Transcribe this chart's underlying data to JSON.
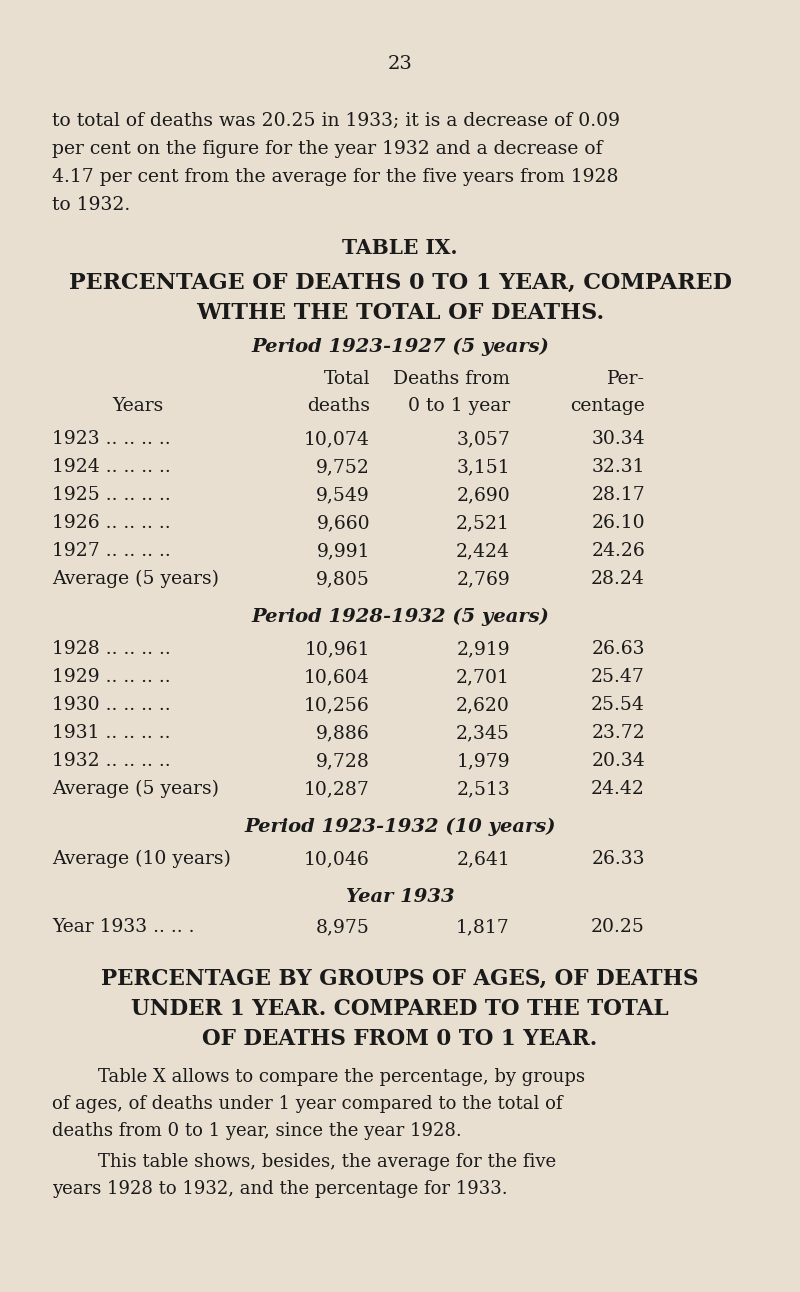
{
  "page_number": "23",
  "bg_color": "#e8dfd0",
  "text_color": "#1a1a1a",
  "intro_lines": [
    "to total of deaths was 20.25 in 1933; it is a decrease of 0.09",
    "per cent on the figure for the year 1932 and a decrease of",
    "4.17 per cent from the average for the five years from 1928",
    "to 1932."
  ],
  "table_title": "TABLE IX.",
  "table_heading_line1": "PERCENTAGE OF DEATHS 0 TO 1 YEAR, COMPARED",
  "table_heading_line2": "WITHE THE TOTAL OF DEATHS.",
  "period1_header": "Period 1923-1927 (5 years)",
  "col_header_row1": [
    "",
    "Total",
    "Deaths from",
    "Per-"
  ],
  "col_header_row2": [
    "Years",
    "deaths",
    "0 to 1 year",
    "centage"
  ],
  "period1_rows": [
    [
      "1923 .. .. .. ..",
      "10,074",
      "3,057",
      "30.34"
    ],
    [
      "1924 .. .. .. ..",
      "9,752",
      "3,151",
      "32.31"
    ],
    [
      "1925 .. .. .. ..",
      "9,549",
      "2,690",
      "28.17"
    ],
    [
      "1926 .. .. .. ..",
      "9,660",
      "2,521",
      "26.10"
    ],
    [
      "1927 .. .. .. ..",
      "9,991",
      "2,424",
      "24.26"
    ],
    [
      "Average (5 years)",
      "9,805",
      "2,769",
      "28.24"
    ]
  ],
  "period2_header": "Period 1928-1932 (5 years)",
  "period2_rows": [
    [
      "1928 .. .. .. ..",
      "10,961",
      "2,919",
      "26.63"
    ],
    [
      "1929 .. .. .. ..",
      "10,604",
      "2,701",
      "25.47"
    ],
    [
      "1930 .. .. .. ..",
      "10,256",
      "2,620",
      "25.54"
    ],
    [
      "1931 .. .. .. ..",
      "9,886",
      "2,345",
      "23.72"
    ],
    [
      "1932 .. .. .. ..",
      "9,728",
      "1,979",
      "20.34"
    ],
    [
      "Average (5 years)",
      "10,287",
      "2,513",
      "24.42"
    ]
  ],
  "period3_header": "Period 1923-1932 (10 years)",
  "period3_rows": [
    [
      "Average (10 years)",
      "10,046",
      "2,641",
      "26.33"
    ]
  ],
  "period4_header": "Year 1933",
  "period4_rows": [
    [
      "Year 1933 .. .. .",
      "8,975",
      "1,817",
      "20.25"
    ]
  ],
  "section2_line1": "PERCENTAGE BY GROUPS OF AGES, OF DEATHS",
  "section2_line2": "UNDER 1 YEAR. COMPARED TO THE TOTAL",
  "section2_line3": "OF DEATHS FROM 0 TO 1 YEAR.",
  "para1_lines": [
    "        Table X allows to compare the percentage, by groups",
    "of ages, of deaths under 1 year compared to the total of",
    "deaths from 0 to 1 year, since the year 1928."
  ],
  "para2_lines": [
    "        This table shows, besides, the average for the five",
    "years 1928 to 1932, and the percentage for 1933."
  ]
}
